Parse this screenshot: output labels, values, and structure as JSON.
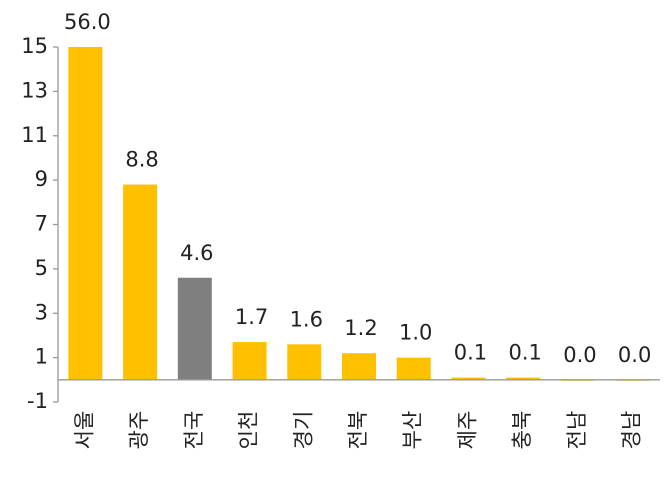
{
  "chart_data": {
    "type": "bar",
    "categories": [
      "서울",
      "광주",
      "전국",
      "인천",
      "경기",
      "전북",
      "부산",
      "제주",
      "충북",
      "전남",
      "경남"
    ],
    "values": [
      56.0,
      8.8,
      4.6,
      1.7,
      1.6,
      1.2,
      1.0,
      0.1,
      0.1,
      0.0,
      0.0
    ],
    "value_labels": [
      "56.0",
      "8.8",
      "4.6",
      "1.7",
      "1.6",
      "1.2",
      "1.0",
      "0.1",
      "0.1",
      "0.0",
      "0.0"
    ],
    "colors": [
      "#FFC000",
      "#FFC000",
      "#7F7F7F",
      "#FFC000",
      "#FFC000",
      "#FFC000",
      "#FFC000",
      "#FFC000",
      "#FFC000",
      "#FFC000",
      "#FFC000"
    ],
    "ylim": [
      -1,
      15
    ],
    "yticks": [
      -1,
      1,
      3,
      5,
      7,
      9,
      11,
      13,
      15
    ],
    "grid": false
  }
}
